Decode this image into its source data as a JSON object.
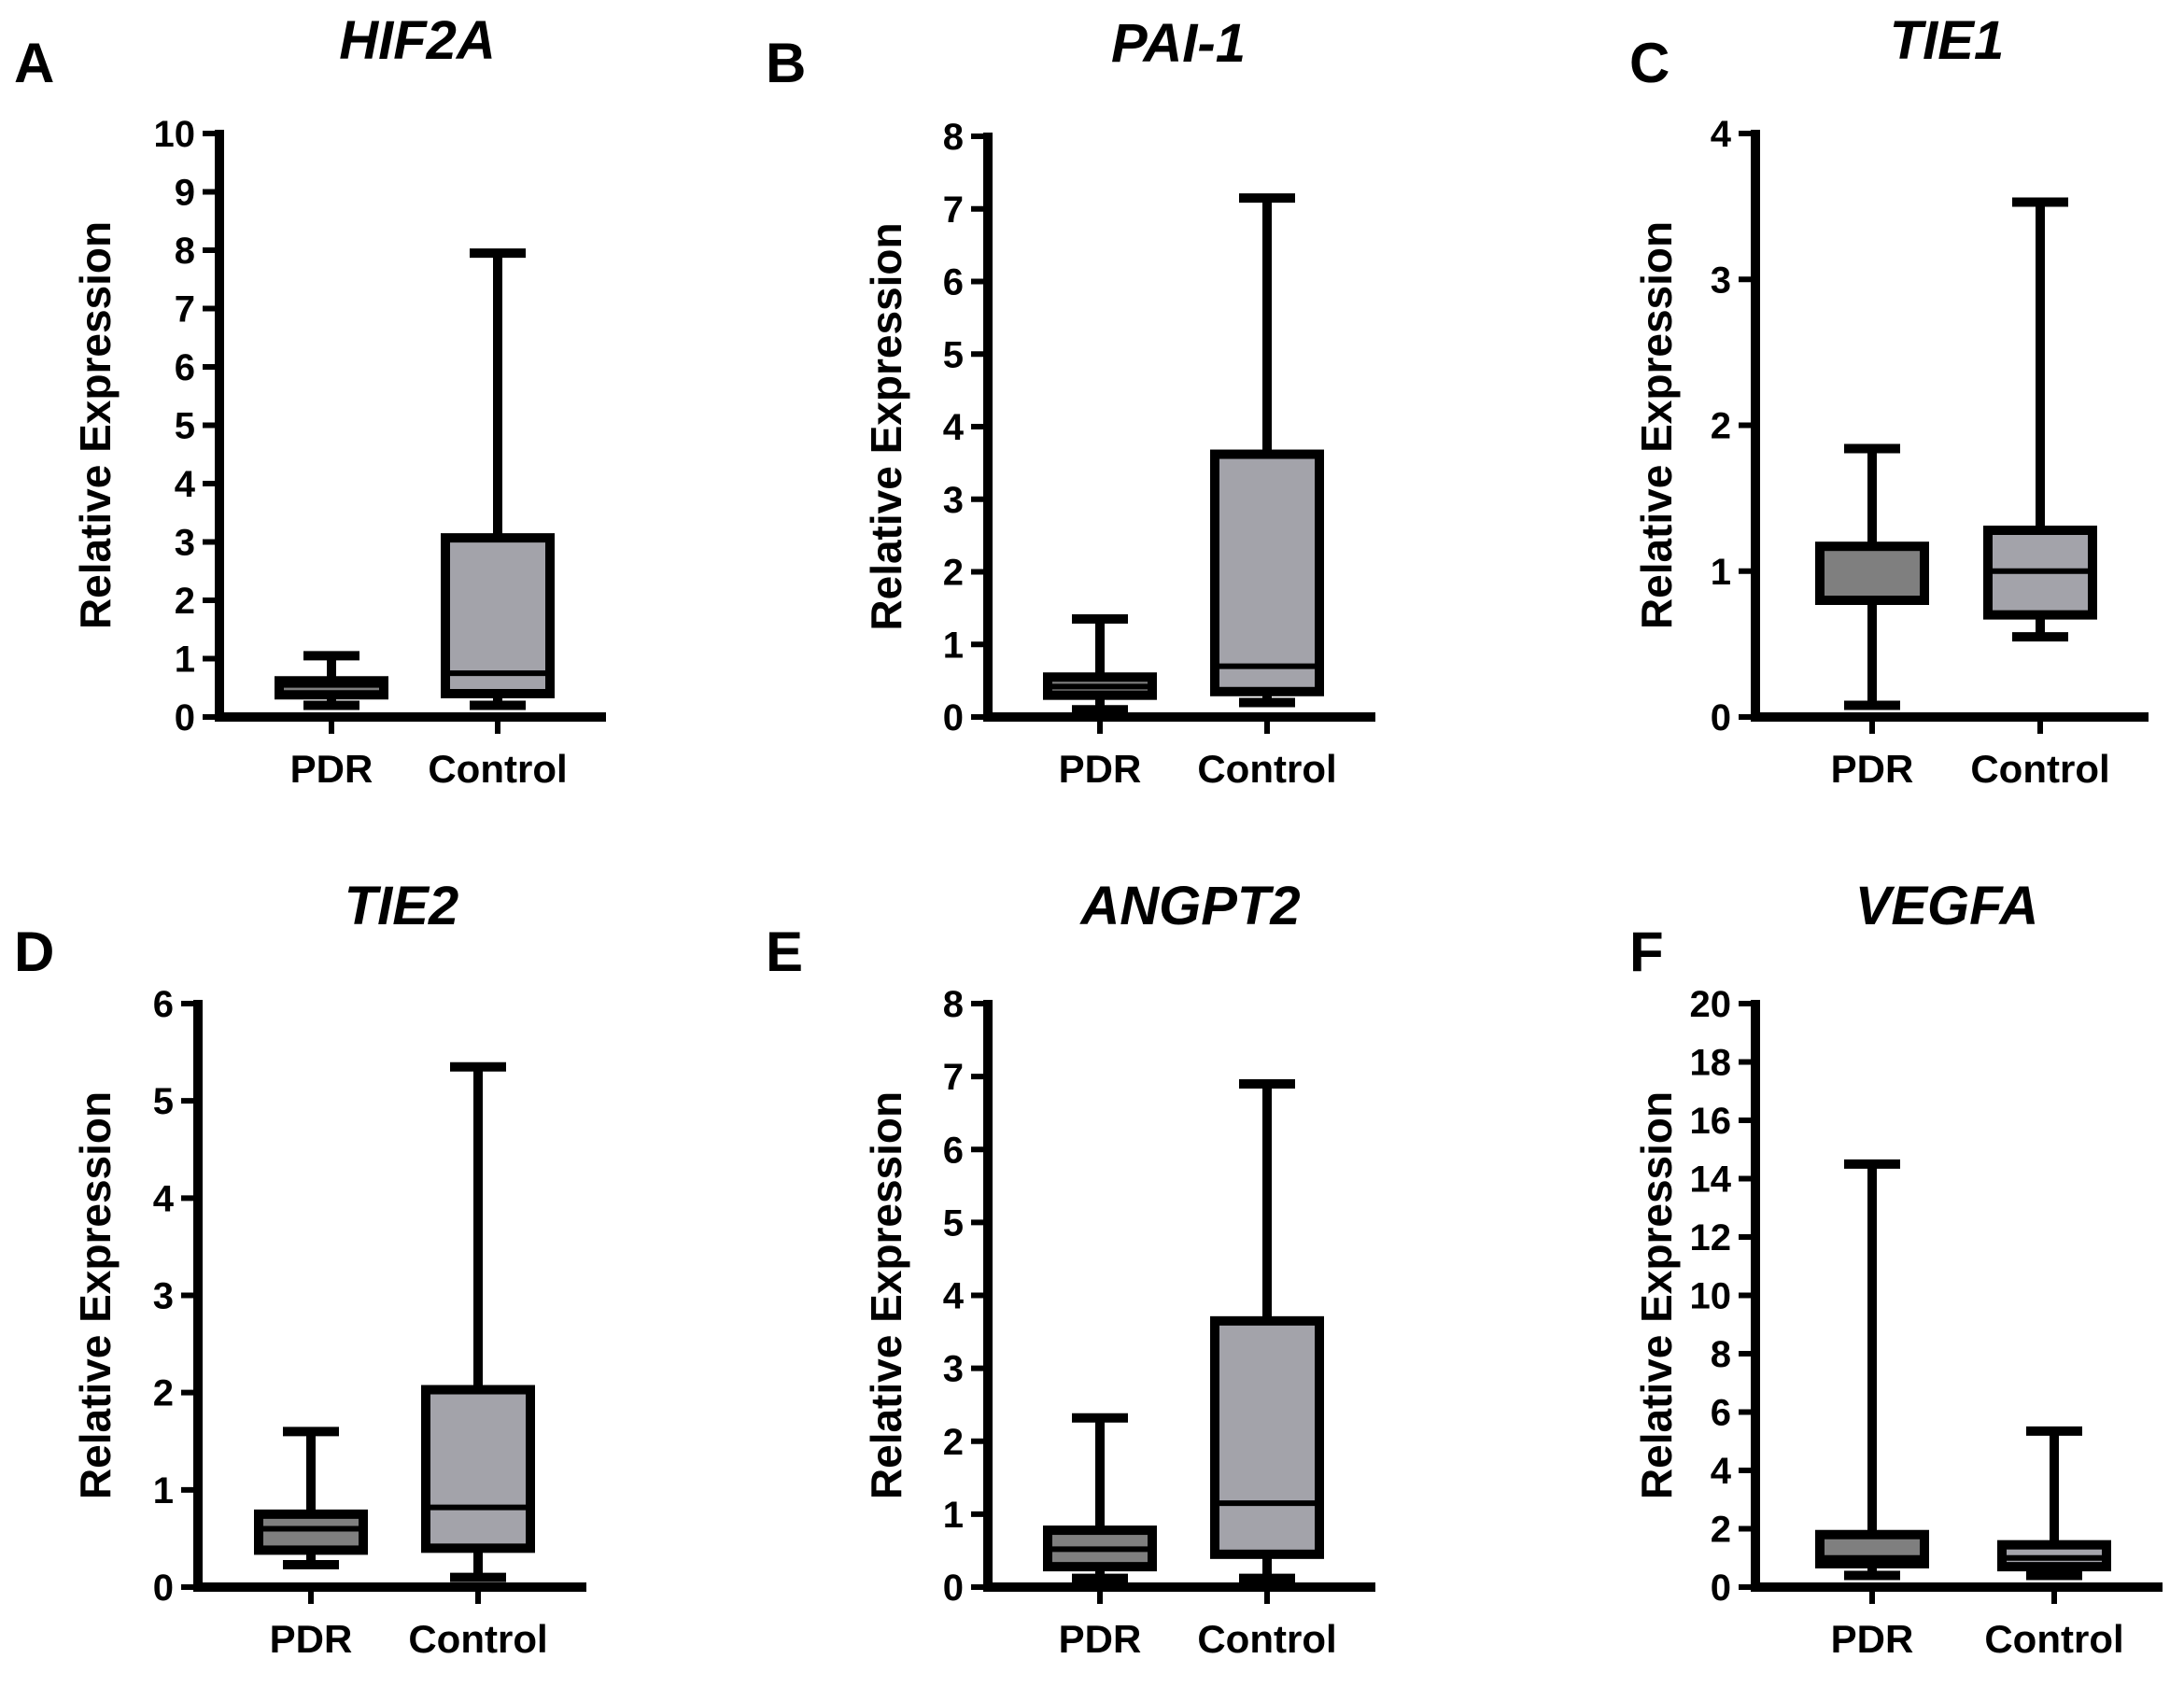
{
  "figure": {
    "background": "#ffffff",
    "line_color": "#000000"
  },
  "chart_data": [
    {
      "type": "box",
      "panel": "A",
      "title": "HIF2A",
      "ylabel": "Relative Expression",
      "ylim": [
        0,
        10
      ],
      "yticks": [
        0,
        1,
        2,
        3,
        4,
        5,
        6,
        7,
        8,
        9,
        10
      ],
      "categories": [
        "PDR",
        "Control"
      ],
      "boxes": [
        {
          "name": "PDR",
          "min": 0.2,
          "q1": 0.38,
          "median": 0.55,
          "q3": 0.62,
          "max": 1.05,
          "fill": "#7f7f7f"
        },
        {
          "name": "Control",
          "min": 0.2,
          "q1": 0.4,
          "median": 0.75,
          "q3": 3.07,
          "max": 7.95,
          "fill": "#a3a3aa"
        }
      ]
    },
    {
      "type": "box",
      "panel": "B",
      "title": "PAI-1",
      "ylabel": "Relative Expression",
      "ylim": [
        0,
        8
      ],
      "yticks": [
        0,
        1,
        2,
        3,
        4,
        5,
        6,
        7,
        8
      ],
      "categories": [
        "PDR",
        "Control"
      ],
      "boxes": [
        {
          "name": "PDR",
          "min": 0.1,
          "q1": 0.3,
          "median": 0.42,
          "q3": 0.55,
          "max": 1.35,
          "fill": "#7f7f7f"
        },
        {
          "name": "Control",
          "min": 0.2,
          "q1": 0.35,
          "median": 0.7,
          "q3": 3.62,
          "max": 7.15,
          "fill": "#a3a3aa"
        }
      ]
    },
    {
      "type": "box",
      "panel": "C",
      "title": "TIE1",
      "ylabel": "Relative Expression",
      "ylim": [
        0,
        4
      ],
      "yticks": [
        0,
        1,
        2,
        3,
        4
      ],
      "categories": [
        "PDR",
        "Control"
      ],
      "boxes": [
        {
          "name": "PDR",
          "min": 0.08,
          "q1": 0.8,
          "median": 0.8,
          "q3": 1.17,
          "max": 1.84,
          "fill": "#7f7f7f"
        },
        {
          "name": "Control",
          "min": 0.55,
          "q1": 0.7,
          "median": 1.0,
          "q3": 1.28,
          "max": 3.53,
          "fill": "#a3a3aa"
        }
      ]
    },
    {
      "type": "box",
      "panel": "D",
      "title": "TIE2",
      "ylabel": "Relative Expression",
      "ylim": [
        0,
        6
      ],
      "yticks": [
        0,
        1,
        2,
        3,
        4,
        5,
        6
      ],
      "categories": [
        "PDR",
        "Control"
      ],
      "boxes": [
        {
          "name": "PDR",
          "min": 0.23,
          "q1": 0.38,
          "median": 0.6,
          "q3": 0.75,
          "max": 1.6,
          "fill": "#7f7f7f"
        },
        {
          "name": "Control",
          "min": 0.1,
          "q1": 0.4,
          "median": 0.82,
          "q3": 2.03,
          "max": 5.35,
          "fill": "#a3a3aa"
        }
      ]
    },
    {
      "type": "box",
      "panel": "E",
      "title": "ANGPT2",
      "ylabel": "Relative Expression",
      "ylim": [
        0,
        8
      ],
      "yticks": [
        0,
        1,
        2,
        3,
        4,
        5,
        6,
        7,
        8
      ],
      "categories": [
        "PDR",
        "Control"
      ],
      "boxes": [
        {
          "name": "PDR",
          "min": 0.12,
          "q1": 0.28,
          "median": 0.52,
          "q3": 0.78,
          "max": 2.32,
          "fill": "#7f7f7f"
        },
        {
          "name": "Control",
          "min": 0.12,
          "q1": 0.45,
          "median": 1.15,
          "q3": 3.65,
          "max": 6.9,
          "fill": "#a3a3aa"
        }
      ]
    },
    {
      "type": "box",
      "panel": "F",
      "title": "VEGFA",
      "ylabel": "Relative Expression",
      "ylim": [
        0,
        20
      ],
      "yticks": [
        0,
        2,
        4,
        6,
        8,
        10,
        12,
        14,
        16,
        18,
        20
      ],
      "categories": [
        "PDR",
        "Control"
      ],
      "boxes": [
        {
          "name": "PDR",
          "min": 0.4,
          "q1": 0.8,
          "median": 1.0,
          "q3": 1.8,
          "max": 14.5,
          "fill": "#7f7f7f"
        },
        {
          "name": "Control",
          "min": 0.4,
          "q1": 0.7,
          "median": 1.0,
          "q3": 1.45,
          "max": 5.35,
          "fill": "#a3a3aa"
        }
      ]
    }
  ]
}
